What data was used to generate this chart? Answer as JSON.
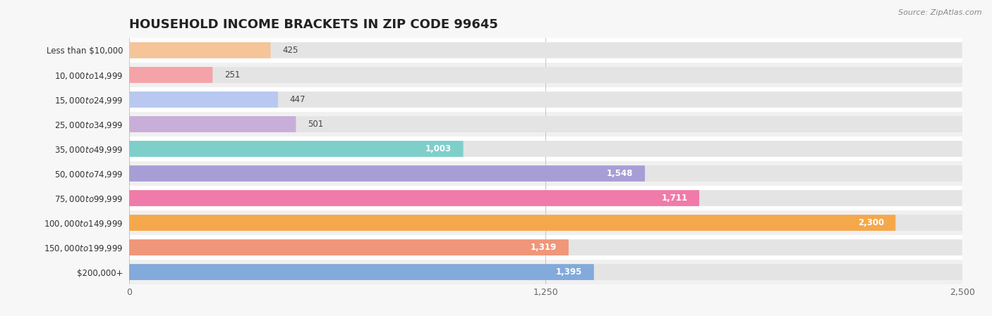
{
  "title": "HOUSEHOLD INCOME BRACKETS IN ZIP CODE 99645",
  "source": "Source: ZipAtlas.com",
  "categories": [
    "Less than $10,000",
    "$10,000 to $14,999",
    "$15,000 to $24,999",
    "$25,000 to $34,999",
    "$35,000 to $49,999",
    "$50,000 to $74,999",
    "$75,000 to $99,999",
    "$100,000 to $149,999",
    "$150,000 to $199,999",
    "$200,000+"
  ],
  "values": [
    425,
    251,
    447,
    501,
    1003,
    1548,
    1711,
    2300,
    1319,
    1395
  ],
  "bar_colors": [
    "#F5C499",
    "#F5A3A8",
    "#B8C8F0",
    "#C9AED9",
    "#7ECFCA",
    "#A89ED6",
    "#F07BAA",
    "#F5A84B",
    "#F0967A",
    "#82AADB"
  ],
  "background_color": "#f7f7f7",
  "bar_bg_color": "#e4e4e4",
  "row_bg_colors": [
    "#ffffff",
    "#f0f0f0"
  ],
  "xlim": [
    0,
    2500
  ],
  "xticks": [
    0,
    1250,
    2500
  ],
  "title_fontsize": 13,
  "label_fontsize": 8.5,
  "value_fontsize": 8.5
}
